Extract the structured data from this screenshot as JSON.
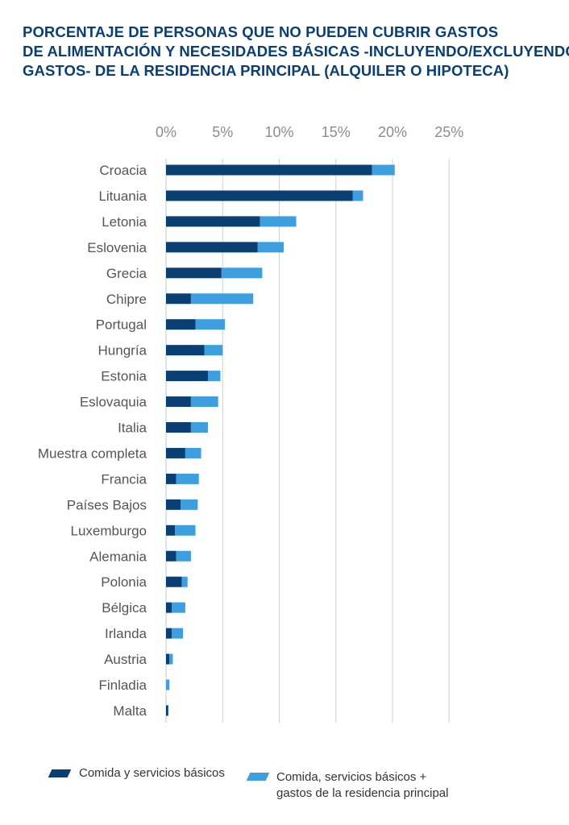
{
  "title_lines": [
    "PORCENTAJE DE PERSONAS QUE NO PUEDEN CUBRIR GASTOS",
    "DE ALIMENTACIÓN Y NECESIDADES BÁSICAS -INCLUYENDO/EXCLUYENDO",
    "GASTOS-  DE LA RESIDENCIA PRINCIPAL (ALQUILER O HIPOTECA)"
  ],
  "colors": {
    "dark": "#0b3f73",
    "light": "#3d9ee0",
    "title": "#0a3f74"
  },
  "chart_data": {
    "type": "bar",
    "orientation": "horizontal",
    "stacked": true,
    "title": "PORCENTAJE DE PERSONAS QUE NO PUEDEN CUBRIR GASTOS DE ALIMENTACIÓN Y NECESIDADES BÁSICAS -INCLUYENDO/EXCLUYENDO GASTOS-  DE LA RESIDENCIA PRINCIPAL (ALQUILER O HIPOTECA)",
    "xlabel": "",
    "ylabel": "",
    "xlim": [
      0,
      25
    ],
    "x_ticks": [
      "0%",
      "5%",
      "10%",
      "15%",
      "20%",
      "25%"
    ],
    "x_tick_values": [
      0,
      5,
      10,
      15,
      20,
      25
    ],
    "grid": true,
    "categories": [
      "Croacia",
      "Lituania",
      "Letonia",
      "Eslovenia",
      "Grecia",
      "Chipre",
      "Portugal",
      "Hungría",
      "Estonia",
      "Eslovaquia",
      "Italia",
      "Muestra completa",
      "Francia",
      "Países Bajos",
      "Luxemburgo",
      "Alemania",
      "Polonia",
      "Bélgica",
      "Irlanda",
      "Austria",
      "Finladia",
      "Malta"
    ],
    "series": [
      {
        "name": "Comida y servicios básicos",
        "values": [
          18.2,
          16.5,
          8.3,
          8.1,
          4.9,
          2.2,
          2.6,
          3.4,
          3.7,
          2.2,
          2.2,
          1.7,
          0.9,
          1.3,
          0.8,
          0.9,
          1.4,
          0.5,
          0.5,
          0.3,
          0.0,
          0.2
        ]
      },
      {
        "name": "Comida, servicios básicos + gastos de la residencia principal",
        "values": [
          2.0,
          0.9,
          3.2,
          2.3,
          3.6,
          5.5,
          2.6,
          1.6,
          1.1,
          2.4,
          1.5,
          1.4,
          2.0,
          1.5,
          1.8,
          1.3,
          0.5,
          1.2,
          1.0,
          0.3,
          0.3,
          0.0
        ]
      }
    ],
    "legend_position": "bottom"
  },
  "legend": {
    "items": [
      {
        "lines": [
          "Comida y servicios básicos"
        ]
      },
      {
        "lines": [
          "Comida, servicios básicos +",
          "gastos de la residencia principal"
        ]
      }
    ]
  }
}
